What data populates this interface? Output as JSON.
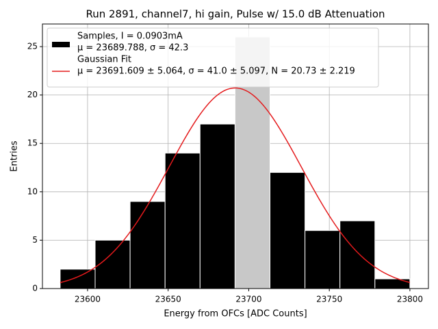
{
  "chart_data": {
    "type": "histogram",
    "title": "Run 2891, channel7, hi gain, Pulse w/ 15.0 dB Attenuation",
    "xlabel": "Energy from OFCs [ADC Counts]",
    "ylabel": "Entries",
    "bins": [
      23583,
      23604.7,
      23626.4,
      23648.1,
      23669.8,
      23691.5,
      23713.2,
      23734.9,
      23756.6,
      23778.3,
      23800
    ],
    "counts": [
      2,
      5,
      9,
      14,
      17,
      26,
      12,
      6,
      7,
      1
    ],
    "bar_colors": [
      "#000000",
      "#000000",
      "#000000",
      "#000000",
      "#000000",
      "#c8c8c8",
      "#000000",
      "#000000",
      "#000000",
      "#000000"
    ],
    "series": [
      {
        "name": [
          "Samples, I = 0.0903mA",
          "μ = 23689.788, σ = 42.3"
        ],
        "color": "#000000"
      },
      {
        "name": [
          "Gaussian Fit",
          "μ = 23691.609 ± 5.064, σ = 41.0 ± 5.097, N = 20.73 ± 2.219"
        ],
        "color": "#e41a1c"
      }
    ],
    "fit": {
      "mu": 23691.609,
      "sigma": 41.0,
      "amplitude": 20.73
    },
    "xlim": [
      23572,
      23811.5
    ],
    "ylim": [
      0,
      27.34
    ],
    "xticks": [
      23600,
      23650,
      23700,
      23750,
      23800
    ],
    "yticks": [
      0,
      5,
      10,
      15,
      20,
      25
    ],
    "grid": true,
    "legend": "upper left"
  }
}
